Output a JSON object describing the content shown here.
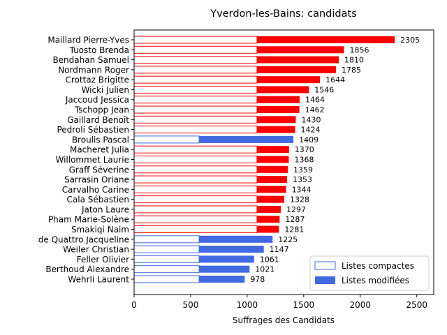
{
  "chart_data": {
    "type": "bar",
    "orientation": "horizontal",
    "stacked": true,
    "title": "Yverdon-les-Bains: candidats",
    "xlabel": "Suffrages des Candidats",
    "ylabel": "",
    "xlim": [
      0,
      2650
    ],
    "xticks": [
      0,
      500,
      1000,
      1500,
      2000,
      2500
    ],
    "grid": false,
    "legend_position": "lower-right",
    "legend": [
      {
        "label": "Listes compactes",
        "style": "outline"
      },
      {
        "label": "Listes modifiées",
        "style": "filled"
      }
    ],
    "colors": {
      "party_red": "#ff0000",
      "party_blue": "#4169e1"
    },
    "candidates": [
      {
        "name": "Maillard Pierre-Yves",
        "compact": 1087,
        "total": 2305,
        "color": "#ff0000"
      },
      {
        "name": "Tuosto Brenda",
        "compact": 1087,
        "total": 1856,
        "color": "#ff0000"
      },
      {
        "name": "Bendahan Samuel",
        "compact": 1087,
        "total": 1810,
        "color": "#ff0000"
      },
      {
        "name": "Nordmann Roger",
        "compact": 1087,
        "total": 1785,
        "color": "#ff0000"
      },
      {
        "name": "Crottaz Brigitte",
        "compact": 1087,
        "total": 1644,
        "color": "#ff0000"
      },
      {
        "name": "Wicki Julien",
        "compact": 1087,
        "total": 1546,
        "color": "#ff0000"
      },
      {
        "name": "Jaccoud Jessica",
        "compact": 1087,
        "total": 1464,
        "color": "#ff0000"
      },
      {
        "name": "Tschopp Jean",
        "compact": 1087,
        "total": 1462,
        "color": "#ff0000"
      },
      {
        "name": "Gaillard Benoît",
        "compact": 1087,
        "total": 1430,
        "color": "#ff0000"
      },
      {
        "name": "Pedroli Sébastien",
        "compact": 1087,
        "total": 1424,
        "color": "#ff0000"
      },
      {
        "name": "Broulis Pascal",
        "compact": 575,
        "total": 1409,
        "color": "#4169e1"
      },
      {
        "name": "Macheret Julia",
        "compact": 1087,
        "total": 1370,
        "color": "#ff0000"
      },
      {
        "name": "Willommet Laurie",
        "compact": 1087,
        "total": 1368,
        "color": "#ff0000"
      },
      {
        "name": "Graff Séverine",
        "compact": 1087,
        "total": 1359,
        "color": "#ff0000"
      },
      {
        "name": "Sarrasin Oriane",
        "compact": 1087,
        "total": 1353,
        "color": "#ff0000"
      },
      {
        "name": "Carvalho Carine",
        "compact": 1087,
        "total": 1344,
        "color": "#ff0000"
      },
      {
        "name": "Cala Sébastien",
        "compact": 1087,
        "total": 1328,
        "color": "#ff0000"
      },
      {
        "name": "Jaton Laure",
        "compact": 1087,
        "total": 1297,
        "color": "#ff0000"
      },
      {
        "name": "Pham Marie-Solène",
        "compact": 1087,
        "total": 1287,
        "color": "#ff0000"
      },
      {
        "name": "Smakiqi Naim",
        "compact": 1087,
        "total": 1281,
        "color": "#ff0000"
      },
      {
        "name": "de Quattro Jacqueline",
        "compact": 575,
        "total": 1225,
        "color": "#4169e1"
      },
      {
        "name": "Weiler Christian",
        "compact": 575,
        "total": 1147,
        "color": "#4169e1"
      },
      {
        "name": "Feller Olivier",
        "compact": 575,
        "total": 1061,
        "color": "#4169e1"
      },
      {
        "name": "Berthoud Alexandre",
        "compact": 575,
        "total": 1021,
        "color": "#4169e1"
      },
      {
        "name": "Wehrli Laurent",
        "compact": 575,
        "total": 978,
        "color": "#4169e1"
      }
    ]
  }
}
